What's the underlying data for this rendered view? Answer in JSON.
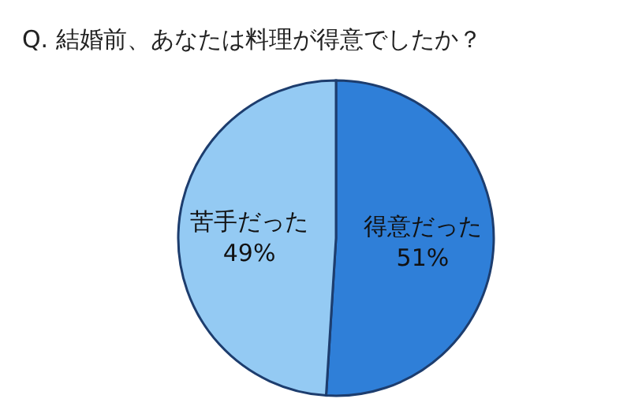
{
  "chart_data": {
    "type": "pie",
    "title": "Q. 結婚前、あなたは料理が得意でしたか？",
    "categories": [
      "得意だった",
      "苦手だった"
    ],
    "values": [
      51,
      49
    ],
    "colors": [
      "#2f7fd8",
      "#94caf3"
    ],
    "value_labels": [
      "51%",
      "49%"
    ]
  }
}
